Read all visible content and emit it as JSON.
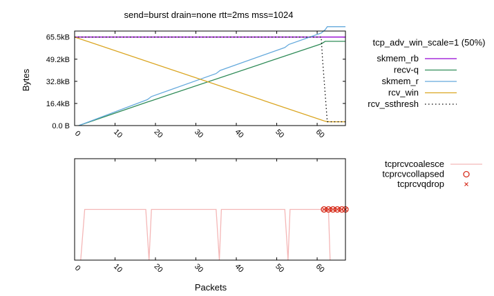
{
  "title": "send=burst drain=none rtt=2ms mss=1024",
  "chart_data": [
    {
      "type": "line",
      "ylabel": "Bytes",
      "xlim": [
        0,
        67
      ],
      "ylim": [
        0,
        70000
      ],
      "xticks": [
        0,
        10,
        20,
        30,
        40,
        50,
        60
      ],
      "yticks": [
        {
          "value": 0,
          "label": "0.0 B"
        },
        {
          "value": 16384,
          "label": "16.4kB"
        },
        {
          "value": 32768,
          "label": "32.8kB"
        },
        {
          "value": 49152,
          "label": "49.2kB"
        },
        {
          "value": 65536,
          "label": "65.5kB"
        }
      ],
      "legend_title": "tcp_adv_win_scale=1 (50%)",
      "legend_placement": "right, outside",
      "series": [
        {
          "name": "skmem_rb",
          "color": "#9400d3",
          "style": "solid",
          "x": [
            0,
            67
          ],
          "y": [
            65536,
            65536
          ]
        },
        {
          "name": "recv-q",
          "color": "#2e8b57",
          "style": "solid",
          "x": [
            1,
            18,
            19,
            61,
            62,
            67
          ],
          "y": [
            0,
            17400,
            18400,
            60500,
            62400,
            62400
          ]
        },
        {
          "name": "skmem_r",
          "color": "#64a9dc",
          "style": "solid",
          "x": [
            1,
            18,
            19,
            35,
            36,
            52,
            53,
            61,
            62,
            62.5,
            63,
            67
          ],
          "y": [
            0,
            19200,
            21500,
            38500,
            40800,
            57800,
            60100,
            68500,
            71000,
            73200,
            73200,
            73200
          ]
        },
        {
          "name": "rcv_win",
          "color": "#daa520",
          "style": "solid",
          "x": [
            0,
            62,
            63,
            67
          ],
          "y": [
            65536,
            3200,
            2800,
            2800
          ]
        },
        {
          "name": "rcv_ssthresh",
          "color": "#000000",
          "style": "dotted",
          "x": [
            0,
            61,
            61.3,
            62.5,
            63,
            67
          ],
          "y": [
            65536,
            65536,
            50000,
            2800,
            2800,
            2800
          ]
        }
      ]
    },
    {
      "type": "line",
      "xlabel": "Packets",
      "xlim": [
        0,
        67
      ],
      "ylim": [
        0,
        1
      ],
      "xticks": [
        0,
        10,
        20,
        30,
        40,
        50,
        60
      ],
      "series": [
        {
          "name": "tcprcvcoalesce",
          "color": "#f4b6b6",
          "style": "solid",
          "x": [
            1.5,
            2.5,
            17.6,
            18.4,
            19.0,
            35.0,
            35.8,
            36.3,
            52.0,
            52.8,
            53.3,
            62.5,
            62.8,
            63.2
          ],
          "y": [
            0,
            0.5,
            0.5,
            0,
            0.5,
            0.5,
            0,
            0.5,
            0.5,
            0,
            0.5,
            0.5,
            0.5,
            0
          ]
        },
        {
          "name": "tcprcvcollapsed",
          "color": "#d7301f",
          "marker": "circle",
          "x": [
            61.7,
            62.8,
            63.9,
            65.0,
            66.1,
            67.0
          ],
          "y": [
            0.5,
            0.5,
            0.5,
            0.5,
            0.5,
            0.5
          ]
        },
        {
          "name": "tcprcvqdrop",
          "color": "#d7301f",
          "marker": "x",
          "x": [
            61.7,
            62.8,
            63.9,
            65.0,
            66.1,
            67.0
          ],
          "y": [
            0.5,
            0.5,
            0.5,
            0.5,
            0.5,
            0.5
          ]
        }
      ]
    }
  ]
}
